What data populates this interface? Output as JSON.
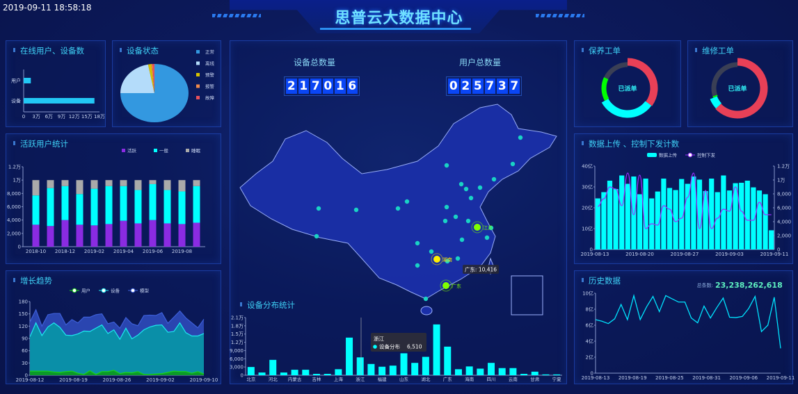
{
  "header": {
    "datetime": "2019-09-11 18:58:18",
    "title": "思普云大数据中心"
  },
  "counters": {
    "devices": {
      "label": "设备总数量",
      "value": "217016"
    },
    "users": {
      "label": "用户总数量",
      "value": "025737"
    }
  },
  "panels": {
    "online": {
      "title": "在线用户、设备数"
    },
    "device_status": {
      "title": "设备状态"
    },
    "active_users": {
      "title": "活跃用户统计"
    },
    "growth": {
      "title": "增长趋势"
    },
    "distribution": {
      "title": "设备分布统计"
    },
    "maintenance": {
      "title": "保养工单",
      "center": "已派单"
    },
    "repair": {
      "title": "维修工单",
      "center": "已派单"
    },
    "upload": {
      "title": "数据上传 、控制下发计数"
    },
    "history": {
      "title": "历史数据",
      "total_label": "总条数:",
      "total": "23,238,262,618"
    }
  },
  "map": {
    "labels": [
      "江苏",
      "湖南",
      "广东"
    ],
    "tooltip": "广东: 10,416",
    "colors": {
      "land": "#1a2fa8",
      "border": "#9fb4ff",
      "dot": "#19d3c5",
      "highlight_yellow": "#ffee00",
      "highlight_green": "#7fff00"
    }
  },
  "chart_data": [
    {
      "id": "online",
      "type": "bar",
      "orientation": "horizontal",
      "categories": [
        "用户",
        "设备"
      ],
      "values": [
        17000,
        168000
      ],
      "xticks": [
        "0",
        "3万",
        "6万",
        "9万",
        "12万",
        "15万",
        "18万"
      ],
      "xlim": [
        0,
        180000
      ],
      "color": "#22c8f5"
    },
    {
      "id": "device_status",
      "type": "pie",
      "labels": [
        "正常",
        "离线",
        "预警",
        "报警",
        "故障"
      ],
      "values": [
        75,
        22,
        1.5,
        0.6,
        0.9
      ],
      "colors": [
        "#3398e0",
        "#b4dcfa",
        "#d8c200",
        "#f08a4b",
        "#e8505b"
      ],
      "legend": "right"
    },
    {
      "id": "active_users",
      "type": "bar",
      "stacked": true,
      "categories": [
        "2018-10",
        "2018-11",
        "2018-12",
        "2019-01",
        "2019-02",
        "2019-03",
        "2019-04",
        "2019-05",
        "2019-06",
        "2019-07",
        "2019-08",
        "2019-09"
      ],
      "xticks": [
        "2018-10",
        "2018-12",
        "2019-02",
        "2019-04",
        "2019-06",
        "2019-08"
      ],
      "yticks": [
        "0",
        "2,000",
        "4,000",
        "6,000",
        "8,000",
        "1万",
        "1.2万"
      ],
      "ylim": [
        0,
        12000
      ],
      "series": [
        {
          "name": "活跃",
          "color": "#8a2be2",
          "values": [
            3300,
            3100,
            4000,
            3300,
            3200,
            3400,
            3900,
            3500,
            4000,
            3500,
            3400,
            3600
          ]
        },
        {
          "name": "一般",
          "color": "#00ffff",
          "values": [
            4400,
            5700,
            5100,
            4600,
            5500,
            5700,
            5200,
            5000,
            5400,
            5000,
            4900,
            5500
          ]
        },
        {
          "name": "睡眠",
          "color": "#aaaaaa",
          "values": [
            2300,
            1200,
            900,
            2100,
            1300,
            900,
            900,
            1500,
            600,
            1500,
            1700,
            900
          ]
        }
      ],
      "legend": "top-right"
    },
    {
      "id": "growth",
      "type": "area",
      "xticks": [
        "2019-08-12",
        "2019-08-19",
        "2019-08-26",
        "2019-09-02",
        "2019-09-10"
      ],
      "yticks": [
        "0",
        "30",
        "60",
        "90",
        "120",
        "150",
        "180"
      ],
      "ylim": [
        0,
        180
      ],
      "legend": "top",
      "series": [
        {
          "name": "用户",
          "color": "#1bd21b",
          "values": [
            10,
            10,
            10,
            10,
            8,
            7,
            9,
            10,
            5,
            2,
            11,
            2,
            9,
            9,
            12,
            4,
            7,
            6,
            9,
            2,
            2,
            3,
            4,
            7,
            10,
            9,
            9,
            5,
            9,
            3
          ]
        },
        {
          "name": "设备",
          "color": "#1de9f0",
          "values": [
            94,
            128,
            97,
            118,
            128,
            117,
            98,
            97,
            101,
            108,
            107,
            115,
            123,
            102,
            111,
            88,
            115,
            89,
            98,
            111,
            118,
            122,
            123,
            105,
            107,
            128,
            104,
            96,
            96,
            102
          ]
        },
        {
          "name": "模型",
          "color": "#3d5fd8",
          "values": [
            130,
            160,
            120,
            148,
            151,
            151,
            123,
            136,
            128,
            142,
            142,
            148,
            150,
            126,
            130,
            115,
            141,
            126,
            121,
            146,
            147,
            146,
            153,
            127,
            142,
            157,
            140,
            128,
            116,
            137
          ]
        }
      ]
    },
    {
      "id": "distribution",
      "type": "bar",
      "categories": [
        "北京",
        "",
        "河北",
        "",
        "内蒙古",
        "",
        "吉林",
        "",
        "上海",
        "",
        "浙江",
        "",
        "福建",
        "",
        "山东",
        "",
        "湖北",
        "",
        "广东",
        "",
        "海南",
        "",
        "四川",
        "",
        "云南",
        "",
        "甘肃",
        "",
        "宁夏"
      ],
      "values": [
        3000,
        1000,
        5600,
        1000,
        2000,
        2000,
        500,
        500,
        2200,
        13700,
        6510,
        4100,
        3100,
        3500,
        8000,
        4500,
        6700,
        18500,
        10416,
        2200,
        3200,
        2400,
        4500,
        2600,
        2600,
        500,
        1300,
        300,
        300
      ],
      "yticks": [
        "0",
        "3,000",
        "6,000",
        "9,000",
        "1.2万",
        "1.5万",
        "1.8万",
        "2.1万"
      ],
      "ylim": [
        0,
        21000
      ],
      "color": "#00ffff",
      "tooltip": {
        "title": "浙江",
        "series": "设备分布",
        "value": "6,510"
      }
    },
    {
      "id": "maintenance",
      "type": "donut",
      "values": [
        35,
        32,
        15,
        18
      ],
      "colors": [
        "#e84057",
        "#00ffff",
        "#00ff00",
        "#3a3f55"
      ]
    },
    {
      "id": "repair",
      "type": "donut",
      "values": [
        63,
        6,
        1,
        30
      ],
      "colors": [
        "#e84057",
        "#00ffff",
        "#00ff00",
        "#3a3f55"
      ]
    },
    {
      "id": "upload",
      "type": "bar+line",
      "xticks": [
        "2019-08-13",
        "2019-08-20",
        "2019-08-27",
        "2019-09-03",
        "2019-09-11"
      ],
      "yticks_left": [
        "0",
        "10亿",
        "20亿",
        "30亿",
        "40亿"
      ],
      "ylim_left": [
        0,
        40
      ],
      "yticks_right": [
        "0",
        "2,000",
        "4,000",
        "6,000",
        "8,000",
        "1万",
        "1.2万"
      ],
      "ylim_right": [
        0,
        12000
      ],
      "legend": "top",
      "series": [
        {
          "name": "数据上传",
          "type": "bar",
          "color": "#00ffff",
          "unit": "亿",
          "values": [
            24.5,
            27.5,
            33,
            29,
            35.5,
            31.5,
            35,
            26.5,
            34,
            24.5,
            27.8,
            34,
            29.5,
            28.5,
            33.8,
            31.5,
            35,
            33.5,
            28,
            34,
            27.5,
            35.5,
            28.3,
            31.8,
            32,
            33,
            29.8,
            28.3,
            26.5,
            9.2
          ]
        },
        {
          "name": "控制下发",
          "type": "line",
          "color": "#9b30ff",
          "values": [
            6200,
            7300,
            9000,
            8700,
            6300,
            11000,
            5000,
            10700,
            3000,
            3700,
            3500,
            6300,
            5800,
            4000,
            4500,
            7500,
            11000,
            3000,
            8500,
            3000,
            4500,
            5800,
            5500,
            9000,
            5500,
            4200,
            4200,
            6800,
            5000,
            5000
          ]
        }
      ]
    },
    {
      "id": "history",
      "type": "line",
      "xticks": [
        "2019-08-13",
        "2019-08-19",
        "2019-08-25",
        "2019-08-31",
        "2019-09-06",
        "2019-09-11"
      ],
      "yticks": [
        "0",
        "2亿",
        "4亿",
        "6亿",
        "8亿",
        "10亿"
      ],
      "ylim": [
        0,
        10
      ],
      "color": "#00e5ff",
      "unit": "亿",
      "values": [
        6.7,
        6.5,
        6.2,
        6.8,
        8.6,
        6.7,
        9.7,
        6.7,
        8.3,
        9.6,
        7.7,
        9.7,
        9.3,
        8.9,
        8.9,
        6.9,
        6.3,
        8.4,
        6.9,
        8.2,
        9.4,
        7.0,
        6.95,
        7.1,
        8.1,
        9.6,
        5.2,
        6.0,
        9.5,
        3.1
      ]
    }
  ]
}
